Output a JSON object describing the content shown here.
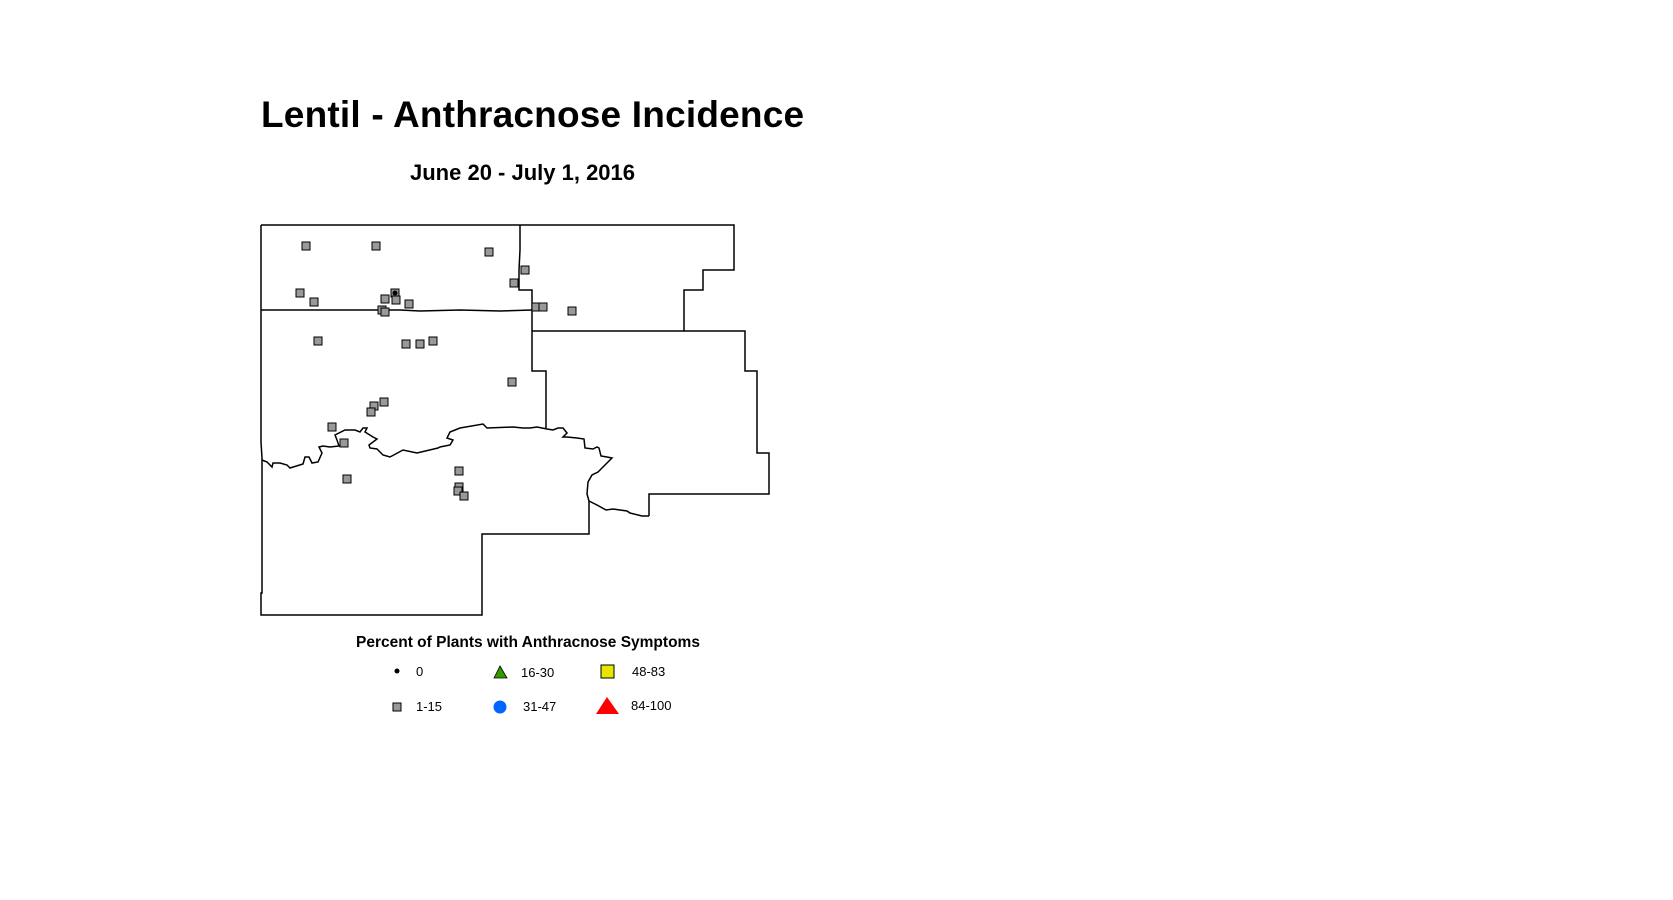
{
  "title": "Lentil - Anthracnose Incidence",
  "subtitle": "June 20 - July 1, 2016",
  "legend": {
    "title": "Percent of Plants with Anthracnose Symptoms",
    "items": [
      {
        "label": "0",
        "symbol": "small-dot",
        "color": "#000000"
      },
      {
        "label": "16-30",
        "symbol": "triangle",
        "color": "#339900"
      },
      {
        "label": "48-83",
        "symbol": "square",
        "color": "#e6e600"
      },
      {
        "label": "1-15",
        "symbol": "square",
        "color": "#999999"
      },
      {
        "label": "31-47",
        "symbol": "circle",
        "color": "#0066ff"
      },
      {
        "label": "84-100",
        "symbol": "triangle",
        "color": "#ff0000"
      }
    ]
  },
  "map": {
    "outline_color": "#000000",
    "background": "#ffffff"
  }
}
